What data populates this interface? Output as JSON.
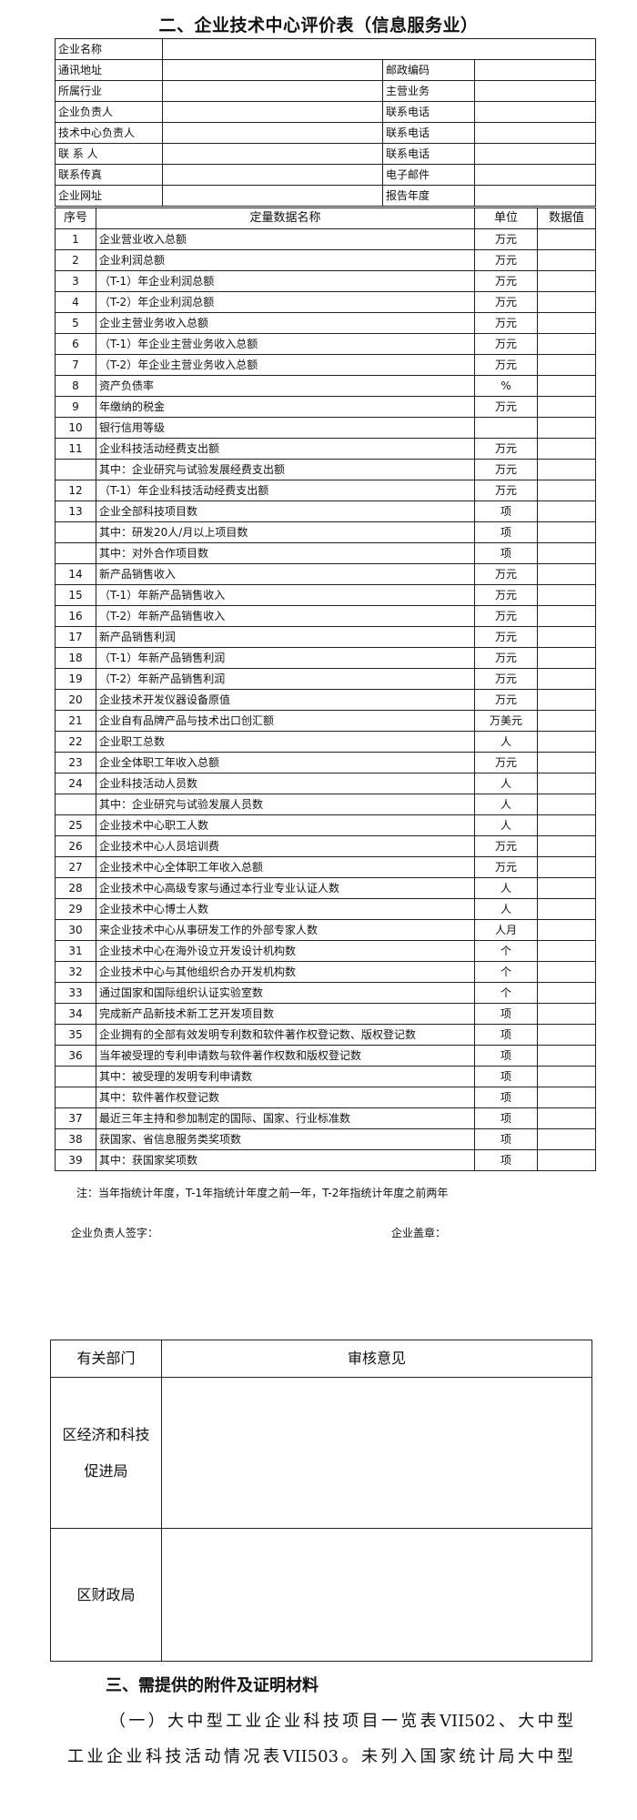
{
  "title": "二、企业技术中心评价表（信息服务业）",
  "info_rows": [
    {
      "label": "企业名称"
    },
    {
      "label": "通讯地址",
      "label2": "邮政编码"
    },
    {
      "label": "所属行业",
      "label2": "主营业务"
    },
    {
      "label": "企业负责人",
      "label2": "联系电话"
    },
    {
      "label": "技术中心负责人",
      "label2": "联系电话"
    },
    {
      "label": "联 系 人",
      "label2": "联系电话"
    },
    {
      "label": "联系传真",
      "label2": "电子邮件"
    },
    {
      "label": "企业网址",
      "label2": "报告年度"
    }
  ],
  "data_table": {
    "headers": [
      "序号",
      "定量数据名称",
      "单位",
      "数据值"
    ],
    "rows": [
      {
        "no": "1",
        "name": "企业营业收入总额",
        "unit": "万元"
      },
      {
        "no": "2",
        "name": "企业利润总额",
        "unit": "万元"
      },
      {
        "no": "3",
        "name": "（T-1）年企业利润总额",
        "unit": "万元"
      },
      {
        "no": "4",
        "name": "（T-2）年企业利润总额",
        "unit": "万元"
      },
      {
        "no": "5",
        "name": "企业主营业务收入总额",
        "unit": "万元"
      },
      {
        "no": "6",
        "name": "（T-1）年企业主营业务收入总额",
        "unit": "万元"
      },
      {
        "no": "7",
        "name": "（T-2）年企业主营业务收入总额",
        "unit": "万元"
      },
      {
        "no": "8",
        "name": "资产负债率",
        "unit": "%"
      },
      {
        "no": "9",
        "name": "年缴纳的税金",
        "unit": "万元"
      },
      {
        "no": "10",
        "name": "银行信用等级",
        "unit": ""
      },
      {
        "no": "11",
        "name": "企业科技活动经费支出额",
        "unit": "万元"
      },
      {
        "no": "",
        "name": "其中：企业研究与试验发展经费支出额",
        "unit": "万元"
      },
      {
        "no": "12",
        "name": "（T-1）年企业科技活动经费支出额",
        "unit": "万元"
      },
      {
        "no": "13",
        "name": "企业全部科技项目数",
        "unit": "项"
      },
      {
        "no": "",
        "name": "其中：研发20人/月以上项目数",
        "unit": "项"
      },
      {
        "no": "",
        "name": "其中：对外合作项目数",
        "unit": "项"
      },
      {
        "no": "14",
        "name": "新产品销售收入",
        "unit": "万元"
      },
      {
        "no": "15",
        "name": "（T-1）年新产品销售收入",
        "unit": "万元"
      },
      {
        "no": "16",
        "name": "（T-2）年新产品销售收入",
        "unit": "万元"
      },
      {
        "no": "17",
        "name": "新产品销售利润",
        "unit": "万元"
      },
      {
        "no": "18",
        "name": "（T-1）年新产品销售利润",
        "unit": "万元"
      },
      {
        "no": "19",
        "name": "（T-2）年新产品销售利润",
        "unit": "万元"
      },
      {
        "no": "20",
        "name": "企业技术开发仪器设备原值",
        "unit": "万元"
      },
      {
        "no": "21",
        "name": "企业自有品牌产品与技术出口创汇额",
        "unit": "万美元"
      },
      {
        "no": "22",
        "name": "企业职工总数",
        "unit": "人"
      },
      {
        "no": "23",
        "name": "企业全体职工年收入总额",
        "unit": "万元"
      },
      {
        "no": "24",
        "name": "企业科技活动人员数",
        "unit": "人"
      },
      {
        "no": "",
        "name": "其中：企业研究与试验发展人员数",
        "unit": "人"
      },
      {
        "no": "25",
        "name": "企业技术中心职工人数",
        "unit": "人"
      },
      {
        "no": "26",
        "name": "企业技术中心人员培训费",
        "unit": "万元"
      },
      {
        "no": "27",
        "name": "企业技术中心全体职工年收入总额",
        "unit": "万元"
      },
      {
        "no": "28",
        "name": "企业技术中心高级专家与通过本行业专业认证人数",
        "unit": "人"
      },
      {
        "no": "29",
        "name": "企业技术中心博士人数",
        "unit": "人"
      },
      {
        "no": "30",
        "name": "来企业技术中心从事研发工作的外部专家人数",
        "unit": "人月"
      },
      {
        "no": "31",
        "name": "企业技术中心在海外设立开发设计机构数",
        "unit": "个"
      },
      {
        "no": "32",
        "name": "企业技术中心与其他组织合办开发机构数",
        "unit": "个"
      },
      {
        "no": "33",
        "name": "通过国家和国际组织认证实验室数",
        "unit": "个"
      },
      {
        "no": "34",
        "name": "完成新产品新技术新工艺开发项目数",
        "unit": "项"
      },
      {
        "no": "35",
        "name": "企业拥有的全部有效发明专利数和软件著作权登记数、版权登记数",
        "unit": "项"
      },
      {
        "no": "36",
        "name": "当年被受理的专利申请数与软件著作权数和版权登记数",
        "unit": "项"
      },
      {
        "no": "",
        "name": "其中：被受理的发明专利申请数",
        "unit": "项"
      },
      {
        "no": "",
        "name": "其中：软件著作权登记数",
        "unit": "项"
      },
      {
        "no": "37",
        "name": "最近三年主持和参加制定的国际、国家、行业标准数",
        "unit": "项"
      },
      {
        "no": "38",
        "name": "获国家、省信息服务类奖项数",
        "unit": "项"
      },
      {
        "no": "39",
        "name": "其中：获国家奖项数",
        "unit": "项"
      }
    ]
  },
  "note": "注：当年指统计年度，T-1年指统计年度之前一年，T-2年指统计年度之前两年",
  "signature_label": "企业负责人签字：",
  "seal_label": "企业盖章：",
  "review_table": {
    "headers": [
      "有关部门",
      "审核意见"
    ],
    "rows": [
      {
        "dept": "区经济和科技促进局"
      },
      {
        "dept": "区财政局"
      }
    ]
  },
  "section3": {
    "heading": "三、需提供的附件及证明材料",
    "lines": [
      "（一）大中型工业企业科技项目一览表VII502、大中型",
      "工业企业科技活动情况表VII503。未列入国家统计局大中型"
    ]
  }
}
